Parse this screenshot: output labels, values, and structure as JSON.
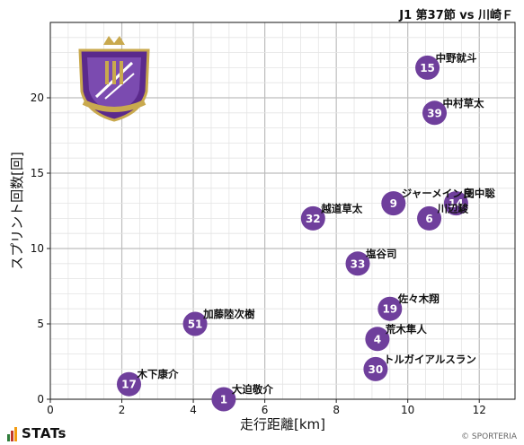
{
  "header": {
    "match": "J1 第37節 vs 川崎Ｆ"
  },
  "footer": {
    "brand": "STATs",
    "copyright": "© SPORTERIA"
  },
  "colors": {
    "marker": "#6f3f9c",
    "marker_text": "#ffffff",
    "grid": "#cfcfcf",
    "crest_purple": "#5b2a8c",
    "crest_gold": "#c9a94e"
  },
  "icons": {
    "team_crest": "sanfrecce-hiroshima-crest",
    "brand": "stats-bars-icon"
  },
  "chart_data": {
    "type": "scatter",
    "title": "",
    "xlabel": "走行距離[km]",
    "ylabel": "スプリント回数[回]",
    "xlim": [
      0,
      13
    ],
    "ylim": [
      0,
      25
    ],
    "xticks": [
      0,
      2,
      4,
      6,
      8,
      10,
      12
    ],
    "yticks": [
      0,
      5,
      10,
      15,
      20
    ],
    "grid": true,
    "points": [
      {
        "number": "15",
        "name": "中野就斗",
        "x": 10.55,
        "y": 22
      },
      {
        "number": "39",
        "name": "中村草太",
        "x": 10.75,
        "y": 19
      },
      {
        "number": "14",
        "name": "田中聡",
        "x": 11.35,
        "y": 13
      },
      {
        "number": "9",
        "name": "ジャーメイン良",
        "x": 9.6,
        "y": 13
      },
      {
        "number": "6",
        "name": "川辺駿",
        "x": 10.6,
        "y": 12
      },
      {
        "number": "32",
        "name": "越道草太",
        "x": 7.35,
        "y": 12
      },
      {
        "number": "33",
        "name": "塩谷司",
        "x": 8.6,
        "y": 9
      },
      {
        "number": "19",
        "name": "佐々木翔",
        "x": 9.5,
        "y": 6
      },
      {
        "number": "51",
        "name": "加藤陸次樹",
        "x": 4.05,
        "y": 5
      },
      {
        "number": "4",
        "name": "荒木隼人",
        "x": 9.15,
        "y": 4
      },
      {
        "number": "30",
        "name": "トルガイアルスラン",
        "x": 9.1,
        "y": 2
      },
      {
        "number": "17",
        "name": "木下康介",
        "x": 2.2,
        "y": 1
      },
      {
        "number": "1",
        "name": "大迫敬介",
        "x": 4.85,
        "y": 0
      }
    ]
  }
}
